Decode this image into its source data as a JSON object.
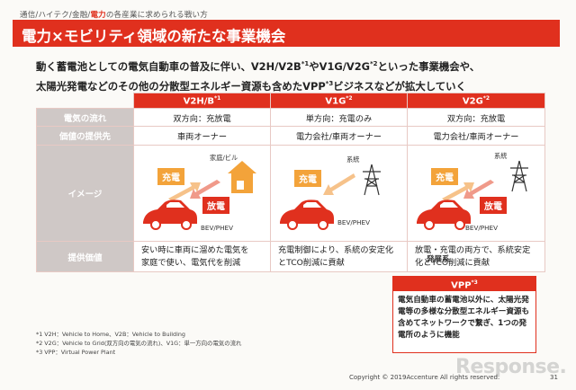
{
  "breadcrumb": {
    "part1": "通信/ハイテク/金融/",
    "highlight": "電力",
    "part2": "の各産業に求められる戦い方"
  },
  "title": "電力×モビリティ領域の新たな事業機会",
  "lead": {
    "line1_a": "動く蓄電池としての電気自動車の普及に伴い、V2H/V2B",
    "line1_sup1": "*1",
    "line1_b": "やV1G/V2G",
    "line1_sup2": "*2",
    "line1_c": "といった事業機会や、",
    "line2_a": "太陽光発電などのその他の分散型エネルギー資源も含めたVPP",
    "line2_sup": "*3",
    "line2_b": "ビジネスなどが拡大していく"
  },
  "table": {
    "columns": [
      {
        "label": "V2H/B",
        "sup": "*1"
      },
      {
        "label": "V1G",
        "sup": "*2"
      },
      {
        "label": "V2G",
        "sup": "*2"
      }
    ],
    "rows": {
      "flow": {
        "label": "電気の流れ",
        "values": [
          "双方向：充放電",
          "単方向：充電のみ",
          "双方向：充放電"
        ]
      },
      "provider": {
        "label": "価値の提供先",
        "values": [
          "車両オーナー",
          "電力会社/車両オーナー",
          "電力会社/車両オーナー"
        ]
      },
      "image": {
        "label": "イメージ"
      },
      "value": {
        "label": "提供価値",
        "values": [
          [
            "安い時に車両に溜めた電気を",
            "家庭で使い、電気代を削減"
          ],
          [
            "充電制御により、系統の安定化",
            "とTCO削減に貢献"
          ],
          [
            "放電・充電の両方で、系統安定",
            "化とTCO削減に貢献"
          ]
        ]
      }
    },
    "image_labels": {
      "home": "家庭/ビル",
      "grid": "系統",
      "charge": "充電",
      "discharge": "放電",
      "vehicle": "BEV/PHEV"
    }
  },
  "evolution": "発展系",
  "vpp": {
    "label": "VPP",
    "sup": "*3",
    "body": "電気自動車の蓄電池以外に、太陽光発電等の多様な分散型エネルギー資源も含めてネットワークで繋ぎ、1つの発電所のように機能"
  },
  "notes": [
    "*1 V2H：Vehicle to Home、V2B：Vehicle to Building",
    "*2 V2G：Vehicle to Grid(双方向の電気の流れ)、V1G：単一方向の電気の流れ",
    "*3 VPP：Virtual Power Plant"
  ],
  "footer": {
    "copyright": "Copyright © 2019Accenture  All rights reserved.",
    "page": "31",
    "watermark": "Response."
  },
  "colors": {
    "accent": "#e0301e",
    "charge": "#f3a33a",
    "row_header": "#cfc8c6"
  }
}
